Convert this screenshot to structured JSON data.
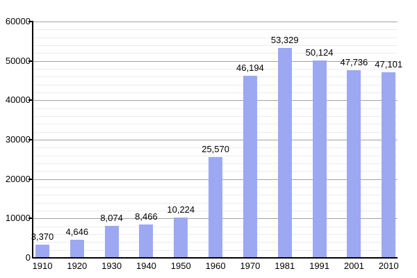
{
  "chart_data": {
    "type": "bar",
    "title": "",
    "categories": [
      "1910",
      "1920",
      "1930",
      "1940",
      "1950",
      "1960",
      "1970",
      "1981",
      "1991",
      "2001",
      "2010"
    ],
    "values": [
      3370,
      4646,
      8074,
      8466,
      10224,
      25570,
      46194,
      53329,
      50124,
      47736,
      47101
    ],
    "value_labels": [
      "3,370",
      "4,646",
      "8,074",
      "8,466",
      "10,224",
      "25,570",
      "46,194",
      "53,329",
      "50,124",
      "47,736",
      "47,101"
    ],
    "xlabel": "",
    "ylabel": "",
    "ylim": [
      0,
      60000
    ],
    "y_major_step": 10000,
    "y_minor_step": 2000,
    "y_tick_labels": [
      "0",
      "10000",
      "20000",
      "30000",
      "40000",
      "50000",
      "60000"
    ],
    "grid": true,
    "legend": false,
    "colors": {
      "bar_fill": "#9CA8F2",
      "major_gridline": "#a3a3a3",
      "minor_gridline": "#ebebeb",
      "axis": "#000000",
      "text": "#000000",
      "background": "#ffffff"
    }
  }
}
